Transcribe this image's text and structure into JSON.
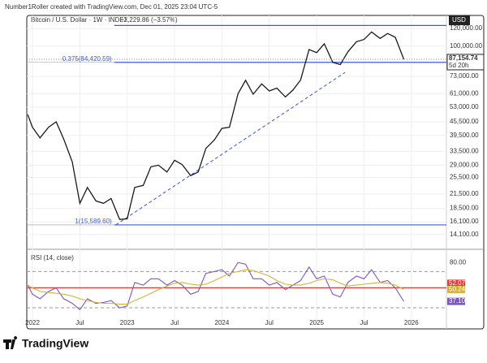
{
  "header": "Number1Roller created with TradingView.com, Dec 01, 2025 23:04 UTC-5",
  "footer": "TradingView",
  "chart_data": {
    "type": "line",
    "title": "Bitcoin / U.S. Dollar · 1W · INDEX",
    "subtitle": "−3,229.86 (−3.57%)",
    "currency": "USD",
    "log_scale": true,
    "grid": true,
    "color": "#1a1a1a",
    "x": [
      2021.95,
      2022,
      2022.08,
      2022.17,
      2022.25,
      2022.33,
      2022.42,
      2022.5,
      2022.58,
      2022.67,
      2022.75,
      2022.83,
      2022.92,
      2023,
      2023.08,
      2023.17,
      2023.25,
      2023.33,
      2023.42,
      2023.5,
      2023.58,
      2023.67,
      2023.75,
      2023.83,
      2023.92,
      2024,
      2024.08,
      2024.17,
      2024.25,
      2024.33,
      2024.42,
      2024.5,
      2024.58,
      2024.67,
      2024.75,
      2024.83,
      2024.92,
      2025,
      2025.08,
      2025.17,
      2025.25,
      2025.33,
      2025.42,
      2025.5,
      2025.58,
      2025.67,
      2025.75,
      2025.83,
      2025.92
    ],
    "values": [
      49000,
      43000,
      38500,
      43000,
      45500,
      38000,
      30000,
      19500,
      23000,
      20000,
      19500,
      20500,
      16500,
      16600,
      23000,
      23500,
      28500,
      29000,
      27000,
      30500,
      29200,
      26000,
      27000,
      34500,
      37700,
      42500,
      43000,
      61000,
      70000,
      60600,
      67500,
      62700,
      64600,
      58900,
      63300,
      70200,
      96400,
      93400,
      102400,
      84400,
      82500,
      94200,
      104600,
      107100,
      115800,
      108200,
      114000,
      109500,
      87154.74
    ],
    "xlim": [
      2021.94,
      2026.37
    ],
    "xticks": [
      2022,
      {
        "value": 2022.5,
        "label": "Jul"
      },
      2023,
      {
        "value": 2023.5,
        "label": "Jul"
      },
      2024,
      {
        "value": 2024.5,
        "label": "Jul"
      },
      2025,
      {
        "value": 2025.5,
        "label": "Jul"
      },
      2026
    ],
    "ylim": [
      12300,
      134000
    ],
    "yticks": [
      {
        "value": 120000,
        "label": "120,000.00"
      },
      {
        "value": 100000,
        "label": "100,000.00"
      },
      {
        "value": 73000,
        "label": "73,000.00"
      },
      {
        "value": 61000,
        "label": "61,000.00"
      },
      {
        "value": 53000,
        "label": "53,000.00"
      },
      {
        "value": 45500,
        "label": "45,500.00"
      },
      {
        "value": 39500,
        "label": "39,500.00"
      },
      {
        "value": 33500,
        "label": "33,500.00"
      },
      {
        "value": 29000,
        "label": "29,000.00"
      },
      {
        "value": 25500,
        "label": "25,500.00"
      },
      {
        "value": 21500,
        "label": "21,500.00"
      },
      {
        "value": 18500,
        "label": "18,500.00"
      },
      {
        "value": 16100,
        "label": "16,100.00"
      },
      {
        "value": 14100,
        "label": "14,100.00"
      }
    ],
    "last_price": {
      "value": 87154.74,
      "label": "87,154.74"
    },
    "countdown": "5d 20h",
    "fib_color": "#3f5bd9",
    "fib_levels": [
      {
        "value": 123800
      },
      {
        "value": 84420.59,
        "label": "0.375(84,420.59)"
      },
      {
        "value": 15589.6,
        "label": "1(15,589.60)"
      }
    ],
    "trendline": {
      "x": [
        2022.88,
        2025.3
      ],
      "y": [
        15589.6,
        76000
      ]
    },
    "rsi": {
      "title": "RSI (14, close)",
      "ylim": [
        22,
        90
      ],
      "yticks": [
        {
          "value": 80,
          "label": "80.00"
        }
      ],
      "bands": [
        70,
        30
      ],
      "level": {
        "value": 52.07,
        "label": "52.07",
        "color": "#e53935"
      },
      "series": [
        {
          "color": "#7e57c2",
          "values": [
            55,
            45,
            40,
            48,
            52,
            40,
            35,
            28,
            40,
            35,
            36,
            38,
            30,
            32,
            58,
            55,
            62,
            62,
            55,
            60,
            55,
            45,
            48,
            68,
            70,
            72,
            65,
            80,
            78,
            62,
            62,
            55,
            58,
            50,
            55,
            60,
            75,
            62,
            65,
            45,
            42,
            58,
            65,
            62,
            72,
            58,
            60,
            52,
            37.1
          ],
          "value_label": "37.10"
        },
        {
          "color": "#d4b23a",
          "values": [
            55,
            52,
            48,
            47,
            46,
            45,
            43,
            40,
            38,
            36,
            35,
            35,
            34,
            34,
            38,
            42,
            46,
            50,
            54,
            57,
            58,
            56,
            55,
            56,
            60,
            64,
            68,
            70,
            72,
            71,
            68,
            65,
            60,
            56,
            55,
            55,
            57,
            60,
            62,
            61,
            57,
            54,
            55,
            56,
            57,
            58,
            57,
            55,
            50.24
          ],
          "value_label": "50.24"
        }
      ]
    }
  }
}
